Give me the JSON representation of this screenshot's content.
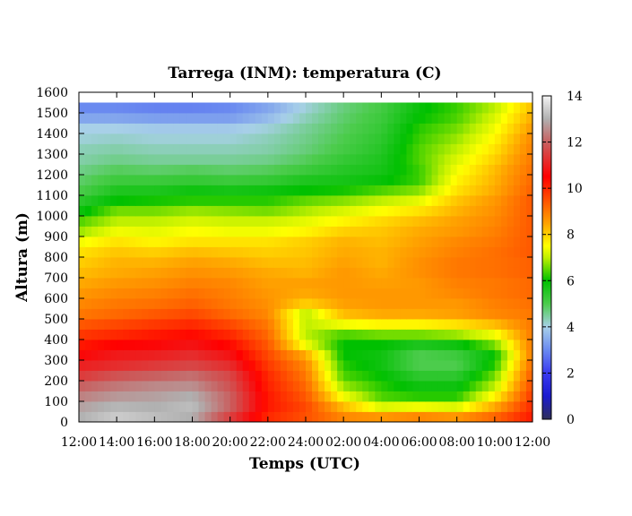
{
  "chart_data": {
    "type": "heatmap",
    "title": "Tarrega (INM): temperatura (C)",
    "xlabel": "Temps (UTC)",
    "ylabel": "Altura (m)",
    "x_ticks": [
      "12:00",
      "14:00",
      "16:00",
      "18:00",
      "20:00",
      "22:00",
      "24:00",
      "02:00",
      "04:00",
      "06:00",
      "08:00",
      "10:00",
      "12:00"
    ],
    "y_ticks": [
      0,
      100,
      200,
      300,
      400,
      500,
      600,
      700,
      800,
      900,
      1000,
      1100,
      1200,
      1300,
      1400,
      1500,
      1600
    ],
    "ylim": [
      0,
      1600
    ],
    "colorbar": {
      "ticks": [
        0,
        2,
        4,
        6,
        8,
        10,
        12,
        14
      ],
      "range": [
        0,
        14
      ],
      "colors": [
        {
          "v": 0,
          "c": "#2e2e5a"
        },
        {
          "v": 1,
          "c": "#1a1ad0"
        },
        {
          "v": 2,
          "c": "#3a3af0"
        },
        {
          "v": 3,
          "c": "#6a8af0"
        },
        {
          "v": 4,
          "c": "#a8d0e8"
        },
        {
          "v": 5,
          "c": "#4ccc4c"
        },
        {
          "v": 6,
          "c": "#00c000"
        },
        {
          "v": 7,
          "c": "#c0f000"
        },
        {
          "v": 7.5,
          "c": "#ffff00"
        },
        {
          "v": 8.5,
          "c": "#ffa000"
        },
        {
          "v": 9.5,
          "c": "#ff5000"
        },
        {
          "v": 10.5,
          "c": "#ff0000"
        },
        {
          "v": 12,
          "c": "#c86060"
        },
        {
          "v": 13,
          "c": "#b0b0b0"
        },
        {
          "v": 14,
          "c": "#f4f4f4"
        }
      ]
    },
    "hours": [
      0,
      2,
      4,
      6,
      8,
      10,
      12,
      14,
      16,
      18,
      20,
      22,
      24
    ],
    "heights": [
      25,
      75,
      125,
      175,
      225,
      275,
      325,
      375,
      425,
      475,
      525,
      575,
      625,
      675,
      725,
      775,
      825,
      875,
      925,
      975,
      1025,
      1075,
      1125,
      1175,
      1225,
      1275,
      1325,
      1375,
      1425,
      1475,
      1525
    ],
    "temperature": [
      [
        13.0,
        13.4,
        13.2,
        13.0,
        11.5,
        10.0,
        9.5,
        8.8,
        8.6,
        8.8,
        8.6,
        9.2,
        10.2
      ],
      [
        12.8,
        13.1,
        13.0,
        13.2,
        12.0,
        10.2,
        9.6,
        8.2,
        7.2,
        7.4,
        7.2,
        8.4,
        10.0
      ],
      [
        12.4,
        12.7,
        12.8,
        13.0,
        12.0,
        10.2,
        9.4,
        7.4,
        6.4,
        6.2,
        6.2,
        7.6,
        9.8
      ],
      [
        12.0,
        12.3,
        12.5,
        12.6,
        11.8,
        10.1,
        9.2,
        6.8,
        6.2,
        5.8,
        5.8,
        7.0,
        9.6
      ],
      [
        11.4,
        11.8,
        12.0,
        12.2,
        11.6,
        10.0,
        9.0,
        6.4,
        6.0,
        5.4,
        5.4,
        6.6,
        9.4
      ],
      [
        11.0,
        11.2,
        11.4,
        11.6,
        11.2,
        9.8,
        8.8,
        6.2,
        5.8,
        5.0,
        5.0,
        6.2,
        9.2
      ],
      [
        10.6,
        10.9,
        11.0,
        11.2,
        10.8,
        9.6,
        8.4,
        6.0,
        5.8,
        5.0,
        5.2,
        6.0,
        9.0
      ],
      [
        10.2,
        10.5,
        10.6,
        10.8,
        10.4,
        9.4,
        7.4,
        6.0,
        6.0,
        5.6,
        5.8,
        6.6,
        9.0
      ],
      [
        9.8,
        10.0,
        10.2,
        10.4,
        10.0,
        9.2,
        7.0,
        6.4,
        6.6,
        6.6,
        6.8,
        7.4,
        9.0
      ],
      [
        9.4,
        9.6,
        9.8,
        10.0,
        9.6,
        9.0,
        7.0,
        7.4,
        7.6,
        7.6,
        7.8,
        8.2,
        9.0
      ],
      [
        9.0,
        9.2,
        9.4,
        9.6,
        9.2,
        8.8,
        7.0,
        8.2,
        8.4,
        8.4,
        8.5,
        8.8,
        9.0
      ],
      [
        8.8,
        9.0,
        9.1,
        9.3,
        9.0,
        8.7,
        8.0,
        8.5,
        8.6,
        8.6,
        8.6,
        8.9,
        9.1
      ],
      [
        8.6,
        8.8,
        8.9,
        9.1,
        8.9,
        8.6,
        8.4,
        8.6,
        8.6,
        8.6,
        8.8,
        9.0,
        9.2
      ],
      [
        8.4,
        8.6,
        8.7,
        8.9,
        8.8,
        8.5,
        8.5,
        8.6,
        8.5,
        8.6,
        8.9,
        9.0,
        9.2
      ],
      [
        8.2,
        8.4,
        8.5,
        8.7,
        8.6,
        8.4,
        8.3,
        8.6,
        8.4,
        8.7,
        9.0,
        9.1,
        9.3
      ],
      [
        8.0,
        8.3,
        8.3,
        8.5,
        8.4,
        8.2,
        8.2,
        8.5,
        8.3,
        8.7,
        9.0,
        9.1,
        9.3
      ],
      [
        7.8,
        8.1,
        8.0,
        8.2,
        8.1,
        8.0,
        8.1,
        8.4,
        8.3,
        8.6,
        8.9,
        9.1,
        9.4
      ],
      [
        7.4,
        7.8,
        7.6,
        7.8,
        7.8,
        7.8,
        8.0,
        8.3,
        8.2,
        8.5,
        8.8,
        9.0,
        9.4
      ],
      [
        6.8,
        7.4,
        7.3,
        7.5,
        7.4,
        7.4,
        7.6,
        8.0,
        8.1,
        8.4,
        8.6,
        8.9,
        9.4
      ],
      [
        6.4,
        7.0,
        7.0,
        7.2,
        7.1,
        7.1,
        7.3,
        7.6,
        7.9,
        8.2,
        8.5,
        8.8,
        9.4
      ],
      [
        5.8,
        6.6,
        6.6,
        6.8,
        6.7,
        6.6,
        6.9,
        7.2,
        7.5,
        7.8,
        8.3,
        8.7,
        9.4
      ],
      [
        5.4,
        6.0,
        6.1,
        6.2,
        6.2,
        6.2,
        6.5,
        6.7,
        7.0,
        7.3,
        8.1,
        8.6,
        9.4
      ],
      [
        5.0,
        5.6,
        5.6,
        5.8,
        5.7,
        5.8,
        6.0,
        6.1,
        6.4,
        6.7,
        7.8,
        8.4,
        9.3
      ],
      [
        4.8,
        5.2,
        5.2,
        5.3,
        5.2,
        5.3,
        5.6,
        5.7,
        5.9,
        6.3,
        7.6,
        8.3,
        9.2
      ],
      [
        4.6,
        4.9,
        4.8,
        4.9,
        4.8,
        4.9,
        5.2,
        5.5,
        5.7,
        6.3,
        7.4,
        8.2,
        9.1
      ],
      [
        4.4,
        4.6,
        4.5,
        4.5,
        4.5,
        4.6,
        4.9,
        5.3,
        5.6,
        6.4,
        7.2,
        8.0,
        9.0
      ],
      [
        4.3,
        4.4,
        4.3,
        4.3,
        4.3,
        4.4,
        4.7,
        5.1,
        5.5,
        6.4,
        7.0,
        7.8,
        8.9
      ],
      [
        4.1,
        4.2,
        4.1,
        4.1,
        4.1,
        4.3,
        4.6,
        5.0,
        5.4,
        6.3,
        6.8,
        7.6,
        8.8
      ],
      [
        4.0,
        4.0,
        3.9,
        3.9,
        3.9,
        4.1,
        4.5,
        4.9,
        5.3,
        6.2,
        6.6,
        7.4,
        8.6
      ],
      [
        3.4,
        3.4,
        3.3,
        3.3,
        3.3,
        3.7,
        4.3,
        4.8,
        5.2,
        6.0,
        6.4,
        7.2,
        8.4
      ],
      [
        3.0,
        3.0,
        2.9,
        2.9,
        3.0,
        3.4,
        4.1,
        4.7,
        5.1,
        5.9,
        6.3,
        7.0,
        8.2
      ]
    ]
  }
}
